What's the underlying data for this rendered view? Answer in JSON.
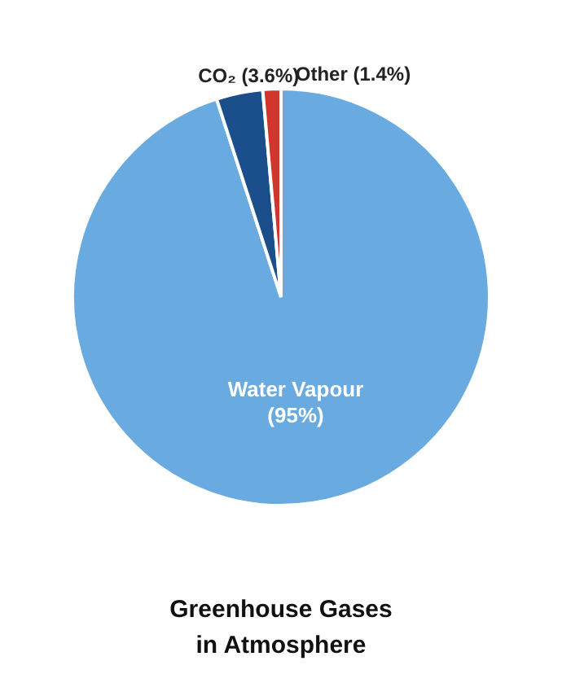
{
  "chart_data": {
    "type": "pie",
    "title": "Greenhouse Gases\nin Atmosphere",
    "categories": [
      "Water Vapour",
      "CO₂",
      "Other"
    ],
    "values": [
      95,
      3.6,
      1.4
    ],
    "value_labels": [
      "(95%)",
      "(3.6%)",
      "(1.4%)"
    ],
    "colors": [
      "#69aae0",
      "#1b4f8c",
      "#d1352b"
    ],
    "legend": false
  }
}
